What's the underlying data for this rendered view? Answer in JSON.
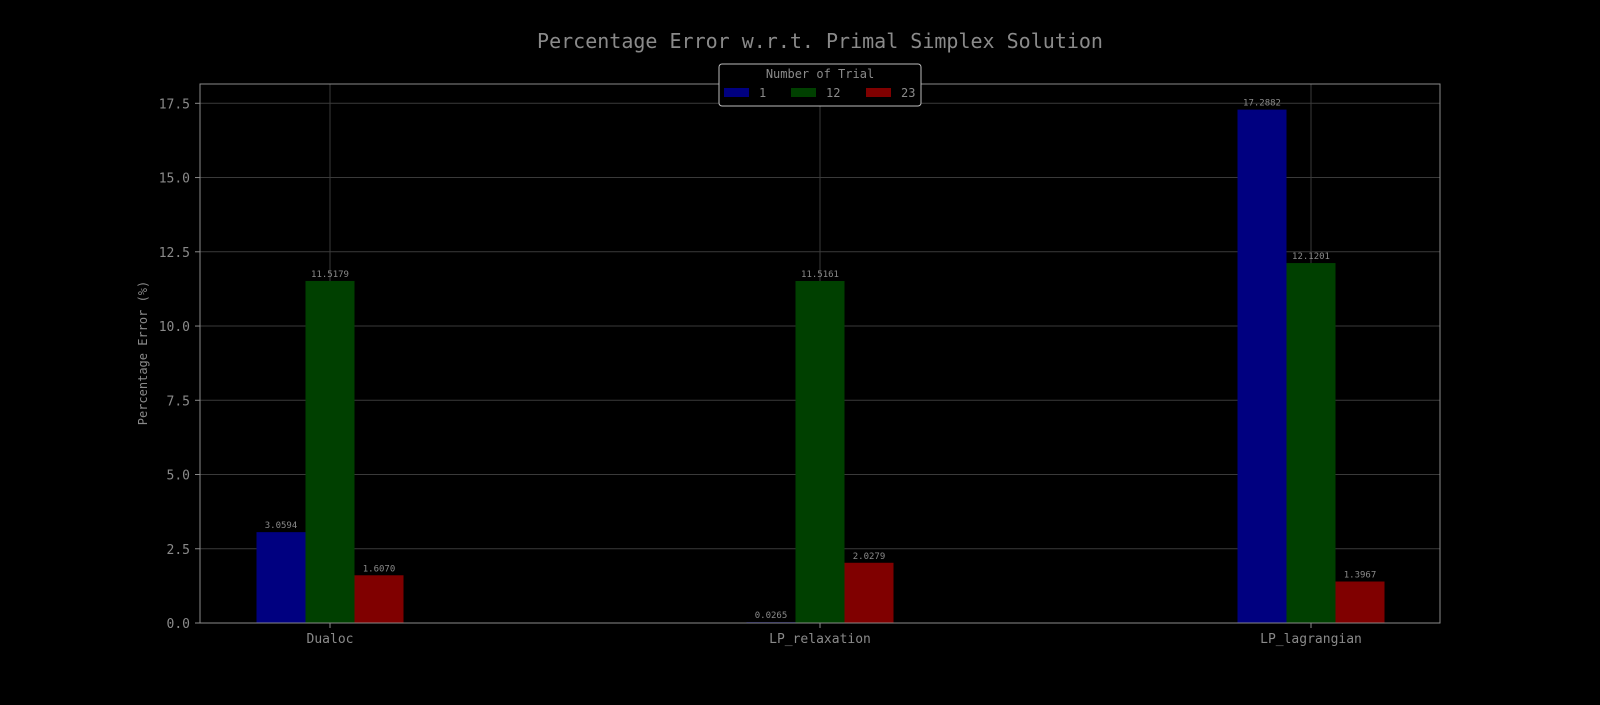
{
  "chart_data": {
    "type": "bar",
    "title": "Percentage Error w.r.t. Primal Simplex Solution",
    "xlabel": "",
    "ylabel": "Percentage Error (%)",
    "categories": [
      "Dualoc",
      "LP_relaxation",
      "LP_lagrangian"
    ],
    "series": [
      {
        "name": "1",
        "color": "#000080",
        "values": [
          3.0594,
          0.0265,
          17.2882
        ],
        "labels": [
          "3.0594",
          "0.0265",
          "17.2882"
        ]
      },
      {
        "name": "12",
        "color": "#004000",
        "values": [
          11.5179,
          11.5161,
          12.1201
        ],
        "labels": [
          "11.5179",
          "11.5161",
          "12.1201"
        ]
      },
      {
        "name": "23",
        "color": "#800000",
        "values": [
          1.607,
          2.0279,
          1.3967
        ],
        "labels": [
          "1.6070",
          "2.0279",
          "1.3967"
        ]
      }
    ],
    "ylim": [
      0,
      18.15
    ],
    "yticks": [
      0,
      2.5,
      5,
      7.5,
      10,
      12.5,
      15,
      17.5
    ],
    "ytick_labels": [
      "0.0",
      "2.5",
      "5.0",
      "7.5",
      "10.0",
      "12.5",
      "15.0",
      "17.5"
    ],
    "grid": true,
    "legend": {
      "title": "Number of Trial",
      "placement": "top-center"
    },
    "colors": {
      "background": "#000000",
      "text": "#8a8a8a",
      "grid": "#3a3a3a",
      "frame": "#8a8a8a"
    }
  }
}
